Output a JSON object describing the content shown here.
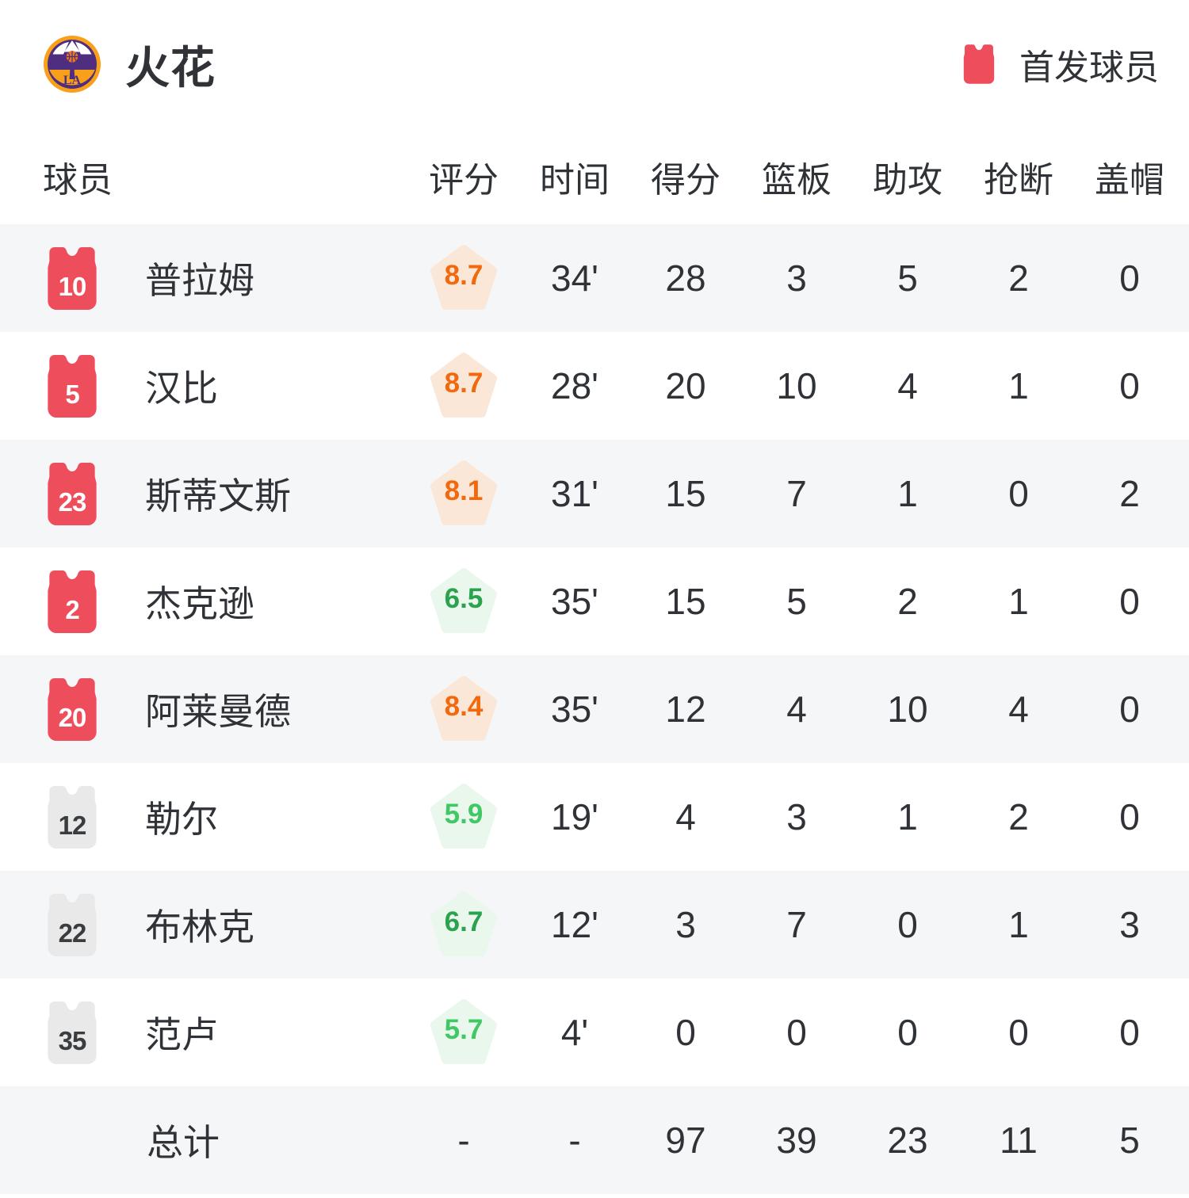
{
  "header": {
    "team_name": "火花",
    "legend": {
      "label": "首发球员"
    }
  },
  "columns": {
    "player": "球员",
    "rating": "评分",
    "time": "时间",
    "points": "得分",
    "rebounds": "篮板",
    "assists": "助攻",
    "steals": "抢断",
    "blocks": "盖帽"
  },
  "players": [
    {
      "number": "10",
      "name": "普拉姆",
      "starter": true,
      "rating": "8.7",
      "tone": "orange",
      "time": "34'",
      "points": "28",
      "rebounds": "3",
      "assists": "5",
      "steals": "2",
      "blocks": "0"
    },
    {
      "number": "5",
      "name": "汉比",
      "starter": true,
      "rating": "8.7",
      "tone": "orange",
      "time": "28'",
      "points": "20",
      "rebounds": "10",
      "assists": "4",
      "steals": "1",
      "blocks": "0"
    },
    {
      "number": "23",
      "name": "斯蒂文斯",
      "starter": true,
      "rating": "8.1",
      "tone": "orange",
      "time": "31'",
      "points": "15",
      "rebounds": "7",
      "assists": "1",
      "steals": "0",
      "blocks": "2"
    },
    {
      "number": "2",
      "name": "杰克逊",
      "starter": true,
      "rating": "6.5",
      "tone": "green",
      "time": "35'",
      "points": "15",
      "rebounds": "5",
      "assists": "2",
      "steals": "1",
      "blocks": "0"
    },
    {
      "number": "20",
      "name": "阿莱曼德",
      "starter": true,
      "rating": "8.4",
      "tone": "orange",
      "time": "35'",
      "points": "12",
      "rebounds": "4",
      "assists": "10",
      "steals": "4",
      "blocks": "0"
    },
    {
      "number": "12",
      "name": "勒尔",
      "starter": false,
      "rating": "5.9",
      "tone": "green_light",
      "time": "19'",
      "points": "4",
      "rebounds": "3",
      "assists": "1",
      "steals": "2",
      "blocks": "0"
    },
    {
      "number": "22",
      "name": "布林克",
      "starter": false,
      "rating": "6.7",
      "tone": "green",
      "time": "12'",
      "points": "3",
      "rebounds": "7",
      "assists": "0",
      "steals": "1",
      "blocks": "3"
    },
    {
      "number": "35",
      "name": "范卢",
      "starter": false,
      "rating": "5.7",
      "tone": "green_light",
      "time": "4'",
      "points": "0",
      "rebounds": "0",
      "assists": "0",
      "steals": "0",
      "blocks": "0"
    }
  ],
  "total": {
    "label": "总计",
    "rating": "-",
    "time": "-",
    "points": "97",
    "rebounds": "39",
    "assists": "23",
    "steals": "11",
    "blocks": "5"
  },
  "colors": {
    "starter_jersey": "#ee4d5c",
    "bench_jersey": "#e9e9ea",
    "rating_orange": "#f2690d",
    "rating_orange_bg": "#fbe7d7",
    "rating_green": "#2ba24d",
    "rating_green_light": "#3fc863",
    "rating_green_bg": "#eaf7ed",
    "row_alt_bg": "#f5f6f7",
    "text": "#2f3337"
  }
}
